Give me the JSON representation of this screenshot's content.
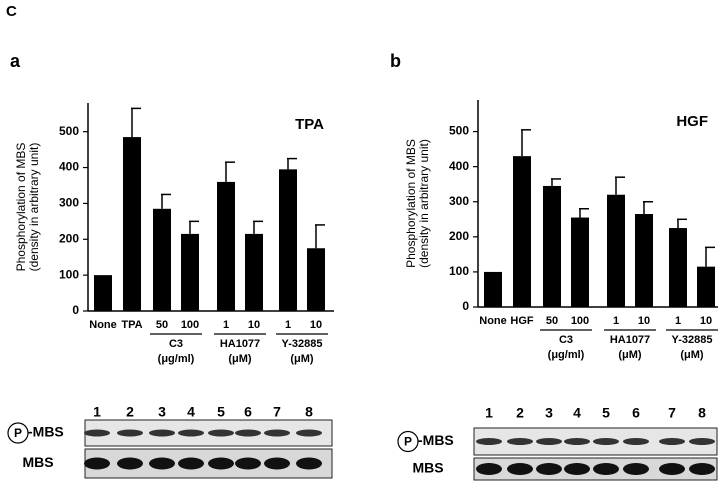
{
  "figure_label": "C",
  "chart_data": [
    {
      "type": "bar",
      "panel": "a",
      "annotation": "TPA",
      "color": "#000000",
      "y_label": [
        "Phosphorylation of MBS",
        "(density in arbitrary unit)"
      ],
      "categories": [
        "None",
        "TPA",
        "50",
        "100",
        "1",
        "10",
        "1",
        "10"
      ],
      "values": [
        100,
        485,
        285,
        215,
        360,
        215,
        395,
        175
      ],
      "errors": [
        0,
        80,
        40,
        35,
        55,
        35,
        30,
        65
      ],
      "groups": [
        {
          "name": "C3",
          "unit": "(μg/ml)"
        },
        {
          "name": "HA1077",
          "unit": "(μM)"
        },
        {
          "name": "Y-32885",
          "unit": "(μM)"
        }
      ],
      "ylim": [
        0,
        580
      ],
      "yticks": [
        0,
        100,
        200,
        300,
        400,
        500
      ]
    },
    {
      "type": "bar",
      "panel": "b",
      "annotation": "HGF",
      "color": "#000000",
      "y_label": [
        "Phosphorylation of MBS",
        "(density in arbitrary unit)"
      ],
      "categories": [
        "None",
        "HGF",
        "50",
        "100",
        "1",
        "10",
        "1",
        "10"
      ],
      "values": [
        100,
        430,
        345,
        255,
        320,
        265,
        225,
        115
      ],
      "errors": [
        0,
        75,
        20,
        25,
        50,
        35,
        25,
        55
      ],
      "groups": [
        {
          "name": "C3",
          "unit": "(μg/ml)"
        },
        {
          "name": "HA1077",
          "unit": "(μM)"
        },
        {
          "name": "Y-32885",
          "unit": "(μM)"
        }
      ],
      "ylim": [
        0,
        590
      ],
      "yticks": [
        0,
        100,
        200,
        300,
        400,
        500
      ]
    }
  ],
  "blots": [
    {
      "lanes": [
        "1",
        "2",
        "3",
        "4",
        "5",
        "6",
        "7",
        "8"
      ],
      "phospho": "P",
      "rows": [
        "-MBS",
        "MBS"
      ]
    },
    {
      "lanes": [
        "1",
        "2",
        "3",
        "4",
        "5",
        "6",
        "7",
        "8"
      ],
      "phospho": "P",
      "rows": [
        "-MBS",
        "MBS"
      ]
    }
  ]
}
